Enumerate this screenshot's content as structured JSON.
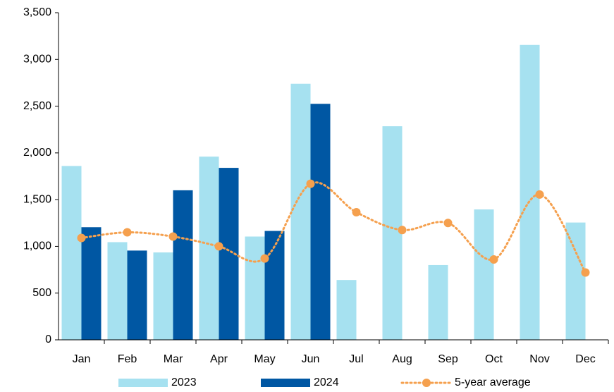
{
  "chart_data": {
    "type": "bar",
    "categories": [
      "Jan",
      "Feb",
      "Mar",
      "Apr",
      "May",
      "Jun",
      "Jul",
      "Aug",
      "Sep",
      "Oct",
      "Nov",
      "Dec"
    ],
    "series": [
      {
        "name": "2023",
        "type": "bar",
        "color": "#a6e1f0",
        "values": [
          1860,
          1045,
          935,
          1960,
          1105,
          2740,
          640,
          2285,
          800,
          1395,
          3155,
          1255
        ]
      },
      {
        "name": "2024",
        "type": "bar",
        "color": "#0057a3",
        "values": [
          1205,
          955,
          1600,
          1840,
          1165,
          2525,
          null,
          null,
          null,
          null,
          null,
          null
        ]
      },
      {
        "name": "5-year average",
        "type": "line",
        "color": "#f5a04e",
        "values": [
          1090,
          1150,
          1105,
          1000,
          870,
          1670,
          1365,
          1175,
          1250,
          860,
          1555,
          720
        ]
      }
    ],
    "ylim": [
      0,
      3500
    ],
    "yticks": [
      0,
      500,
      {
        "value": 1000,
        "label": "1,000"
      },
      {
        "value": 1500,
        "label": "1,500"
      },
      {
        "value": 2000,
        "label": "2,000"
      },
      {
        "value": 2500,
        "label": "2,500"
      },
      {
        "value": 3000,
        "label": "3,000"
      },
      {
        "value": 3500,
        "label": "3,500"
      }
    ],
    "grid": false,
    "legend": "bottom"
  }
}
